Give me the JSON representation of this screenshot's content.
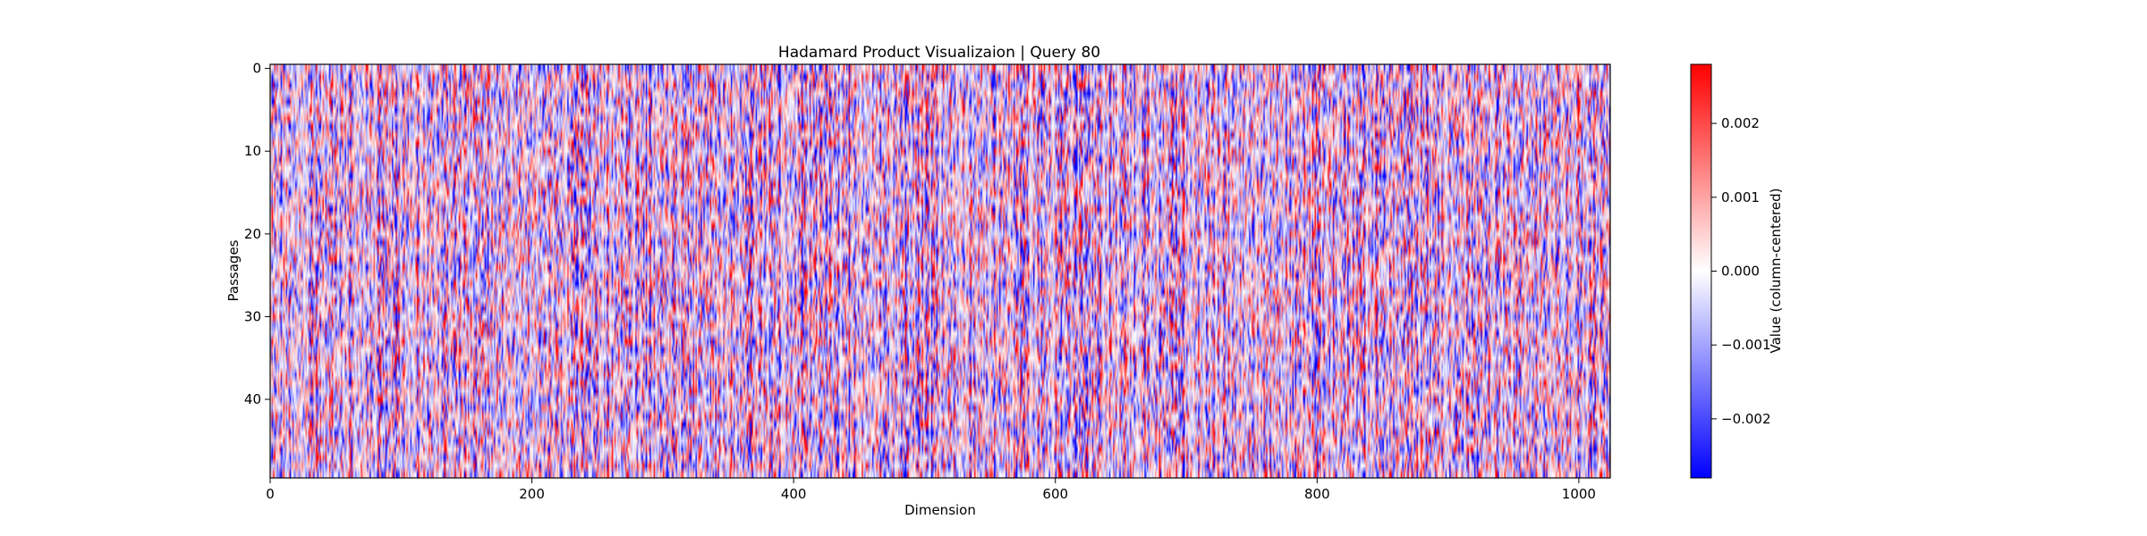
{
  "chart_data": {
    "type": "heatmap",
    "title": "Hadamard Product Visualizaion | Query 80",
    "xlabel": "Dimension",
    "ylabel": "Passages",
    "n_rows": 50,
    "n_cols": 1024,
    "xlim": [
      0,
      1024
    ],
    "ylim": [
      49.5,
      -0.5
    ],
    "xticks": [
      0,
      200,
      400,
      600,
      800,
      1000
    ],
    "yticks": [
      0,
      10,
      20,
      30,
      40
    ],
    "colormap": "bwr",
    "colors": {
      "low": "#0000ff",
      "mid": "#ffffff",
      "high": "#ff0000"
    },
    "value_range": [
      -0.0028,
      0.0028
    ],
    "colorbar": {
      "label": "Value (column-centered)",
      "ticks": [
        0.002,
        0.001,
        0.0,
        -0.001,
        -0.002
      ],
      "tick_labels": [
        "0.002",
        "0.001",
        "0.000",
        "−0.001",
        "−0.002"
      ]
    }
  }
}
